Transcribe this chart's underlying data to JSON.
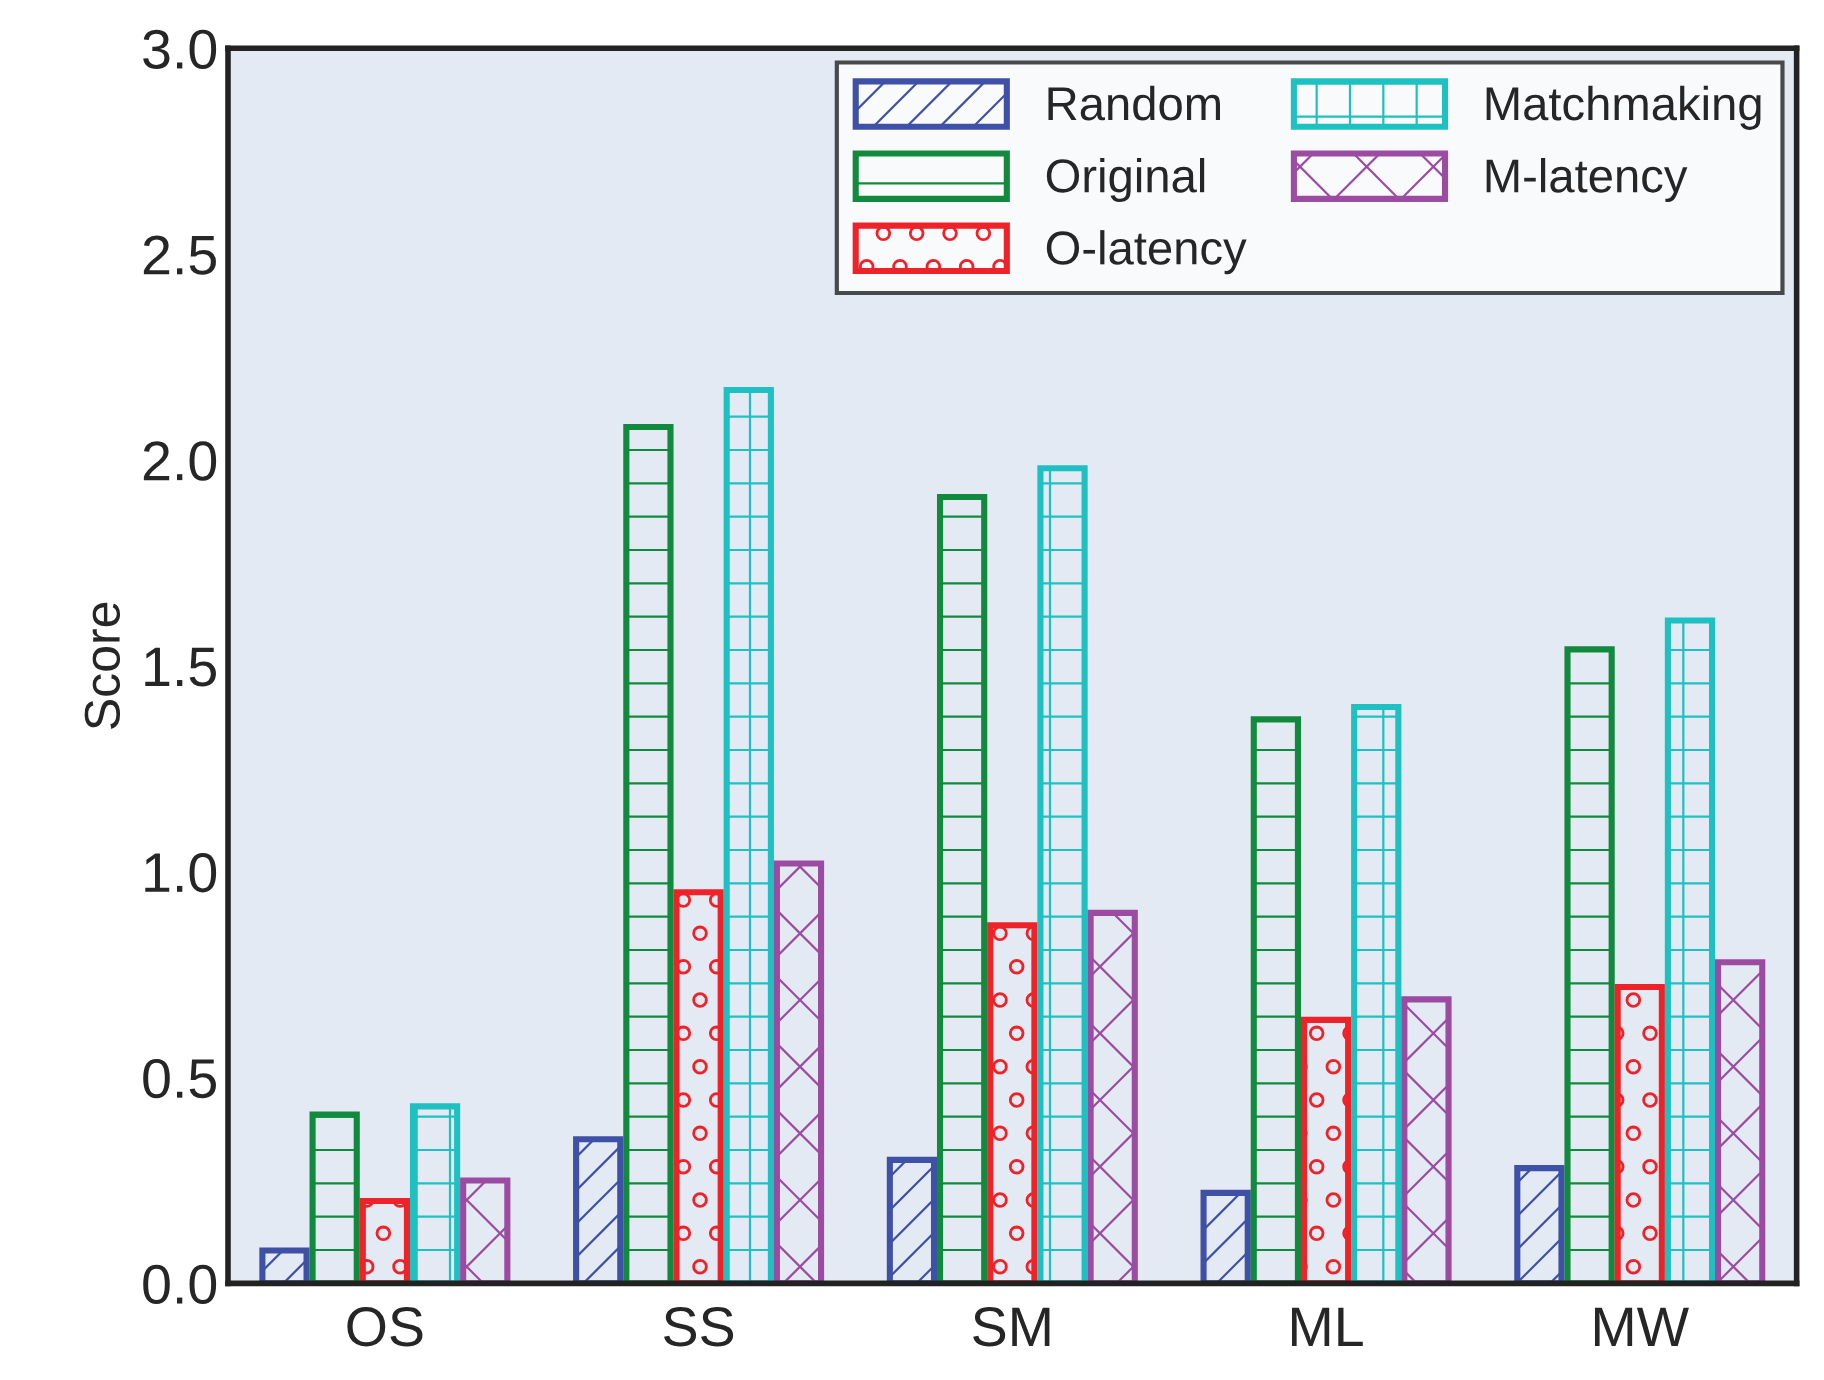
{
  "chart_data": {
    "type": "bar",
    "ylabel": "Score",
    "categories": [
      "OS",
      "SS",
      "SM",
      "ML",
      "MW"
    ],
    "series": [
      {
        "name": "Random",
        "color": "#3f51a6",
        "values": [
          0.08,
          0.35,
          0.3,
          0.22,
          0.28
        ]
      },
      {
        "name": "Original",
        "color": "#128a3e",
        "values": [
          0.41,
          2.08,
          1.91,
          1.37,
          1.54
        ]
      },
      {
        "name": "O-latency",
        "color": "#ee2229",
        "values": [
          0.2,
          0.95,
          0.87,
          0.64,
          0.72
        ]
      },
      {
        "name": "Matchmaking",
        "color": "#1fc0c2",
        "values": [
          0.43,
          2.17,
          1.98,
          1.4,
          1.61
        ]
      },
      {
        "name": "M-latency",
        "color": "#9b4ba1",
        "values": [
          0.25,
          1.02,
          0.9,
          0.69,
          0.78
        ]
      }
    ],
    "ylim": [
      0,
      3.0
    ],
    "yticks": [
      {
        "value": 0,
        "label": "0.0"
      },
      0.5,
      {
        "value": 1,
        "label": "1.0"
      },
      1.5,
      {
        "value": 2,
        "label": "2.0"
      },
      2.5,
      {
        "value": 3,
        "label": "3.0"
      }
    ],
    "grid": false,
    "legend": "top right"
  }
}
